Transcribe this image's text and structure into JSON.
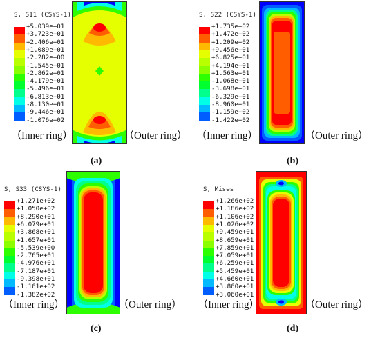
{
  "colors": {
    "scale": [
      "#ff0000",
      "#ff5d00",
      "#ffb900",
      "#e6ff00",
      "#b9ff00",
      "#8bff00",
      "#2eff00",
      "#00ff2e",
      "#00ff8b",
      "#00ffe6",
      "#00b9ff",
      "#005dff",
      "#0000ff"
    ]
  },
  "panels": [
    {
      "id": "a",
      "variable": "S, S11 (CSYS-1)",
      "ticks": [
        "+5.039e+01",
        "+3.723e+01",
        "+2.406e+01",
        "+1.089e+01",
        "-2.282e+00",
        "-1.545e+01",
        "-2.862e+01",
        "-4.179e+01",
        "-5.496e+01",
        "-6.813e+01",
        "-8.130e+01",
        "-9.446e+01",
        "-1.076e+02"
      ],
      "inner_label": "（Inner ring）",
      "outer_label": "（Outer ring）",
      "sub_label": "(a)"
    },
    {
      "id": "b",
      "variable": "S, S22 (CSYS-1)",
      "ticks": [
        "+1.735e+02",
        "+1.472e+02",
        "+1.209e+02",
        "+9.456e+01",
        "+6.825e+01",
        "+4.194e+01",
        "+1.563e+01",
        "-1.068e+01",
        "-3.698e+01",
        "-6.329e+01",
        "-8.960e+01",
        "-1.159e+02",
        "-1.422e+02"
      ],
      "inner_label": "（Inner ring）",
      "outer_label": "（Outer ring）",
      "sub_label": "(b)"
    },
    {
      "id": "c",
      "variable": "S, S33 (CSYS-1)",
      "ticks": [
        "+1.271e+02",
        "+1.050e+02",
        "+8.290e+01",
        "+6.079e+01",
        "+3.868e+01",
        "+1.657e+01",
        "-5.539e+00",
        "-2.765e+01",
        "-4.976e+01",
        "-7.187e+01",
        "-9.398e+01",
        "-1.161e+02",
        "-1.382e+02"
      ],
      "inner_label": "（Inner ring）",
      "outer_label": "（Outer ring）",
      "sub_label": "(c)"
    },
    {
      "id": "d",
      "variable": "S, Mises",
      "ticks": [
        "+1.266e+02",
        "+1.186e+02",
        "+1.106e+02",
        "+1.026e+02",
        "+9.459e+01",
        "+8.659e+01",
        "+7.859e+01",
        "+7.059e+01",
        "+6.259e+01",
        "+5.459e+01",
        "+4.660e+01",
        "+3.860e+01",
        "+3.060e+01"
      ],
      "inner_label": "（Inner ring）",
      "outer_label": "（Outer ring）",
      "sub_label": "(d)"
    }
  ]
}
